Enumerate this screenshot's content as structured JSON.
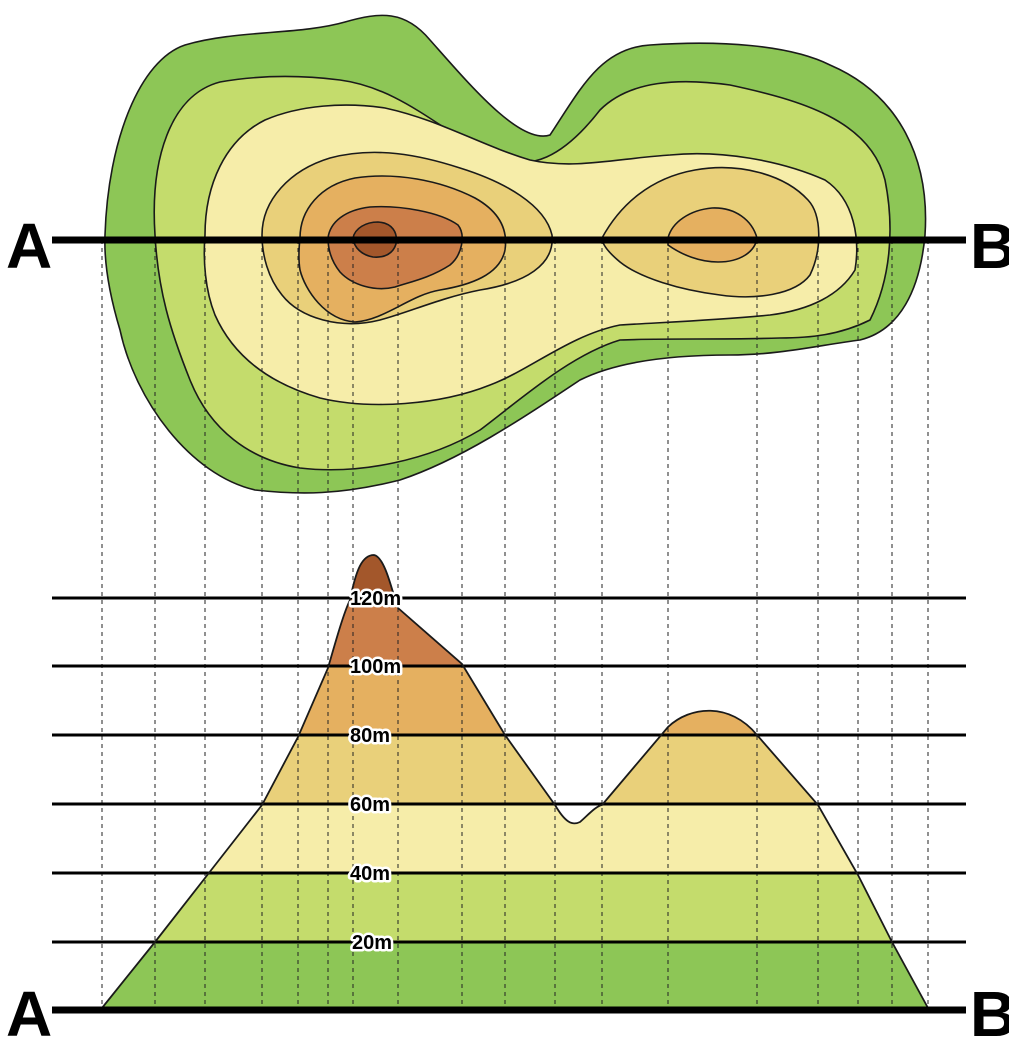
{
  "section": {
    "start_label": "A",
    "end_label": "B"
  },
  "elevation_levels": [
    {
      "label": "20m",
      "value": 20
    },
    {
      "label": "40m",
      "value": 40
    },
    {
      "label": "60m",
      "value": 60
    },
    {
      "label": "80m",
      "value": 80
    },
    {
      "label": "100m",
      "value": 100
    },
    {
      "label": "120m",
      "value": 120
    }
  ],
  "colors": {
    "band_0_20": "#8dc656",
    "band_20_40": "#c4dc6c",
    "band_40_60": "#f6eda9",
    "band_60_80": "#e9d07a",
    "band_80_100": "#e5b060",
    "band_100_120": "#cc7f4a",
    "band_above_120": "#a3572b"
  }
}
